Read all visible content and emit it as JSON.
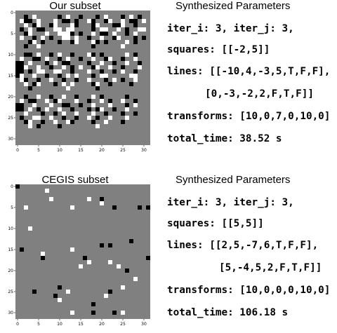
{
  "panels": [
    {
      "title": "Our subset",
      "image": {
        "rows": [
          "................................",
          "..k.w.....k.w..k...k.w...k.w.k..",
          ".wkk.w...w.kk.k..wk..kw..w.kk.w.",
          "..w.kw..kw...wk...kw...kkw..k...",
          ".k.w.kk..ww.ww....k.ww..w.k..ww.",
          "..kw...w..wwwk.k..w.kk.w..k.w...",
          ".w..k.w.k..ww.w..k..w..kw...k.k.",
          "...kw.k...k..kw...wk.k....w.k...",
          "..k..w............k......w......",
          "................................",
          "..kk.w..k.w..k...wk.k.....w.k...",
          ".w..kk.w..k.w..k..w..kw..k..w...",
          "kk.w...k.w.kk....k..w..k..w..k..",
          "kkw..w..k..w.k.w..kw..w..k...w..",
          "kk.k.ww..ww..k...w..k..k.w..k...",
          "kw..w..k..k.w.w...k.ww.....ww...",
          ".wk..k..w..k..k..w...k.w.k..w...",
          "..w.kw...k.w.w....kw..k....k....",
          "...k........w......k............",
          "................................",
          "..k..w..k..w..k...w.k.....k.....",
          ".w.kk..w.kw...w..k..w.k..w..k...",
          "kk..w...w..kk..k..w...w...k.w...",
          "kk.w.k.w..w..k...k.kw..k..w.....",
          "..w...k..k.w..w...w..k...k..k...",
          ".k..ww..w..k..k..w.k..w...w.....",
          "..kw..k..w..wk....k..w...k......",
          "...w.k....k........w............",
          "................................",
          "................................",
          "................................",
          "................................"
        ]
      },
      "xticks": [
        0,
        5,
        10,
        15,
        20,
        25,
        30
      ],
      "yticks": [
        0,
        5,
        10,
        15,
        20,
        25,
        30
      ],
      "heading": "Synthesized Parameters",
      "lines": [
        "iter_i: 3, iter_j: 3,",
        "squares: [[-2,5]]",
        "lines: [[-10,4,-3,5,T,F,F],",
        "[0,-3,-2,2,F,T,F]]",
        "transforms: [10,0,7,0,10,0]",
        "total_time: 38.52 s"
      ]
    },
    {
      "title": "CEGIS subset",
      "image": {
        "rows": [
          "k...............................",
          ".......w........................",
          "................................",
          "........w........w..k...........",
          "....................w...........",
          "..w..........w.........k.....k.k",
          "................................",
          "................................",
          "................................",
          "................................",
          "...w............................",
          "................................",
          "................................",
          "...........................k....",
          "....................k.k.........",
          ".k...........w..................",
          "......w.........................",
          "......k.........k..............k",
          ".................w....w.........",
          "...............w........w.......",
          "..........................k.....",
          "................................",
          "............................w...",
          "................................",
          "..........k..............w......",
          "....k.......w.........k.........",
          ".........k...........w..........",
          "..........w.....................",
          "..................k.............",
          "................................",
          ".............w....k....k.w......",
          "................................"
        ]
      },
      "xticks": [
        0,
        5,
        10,
        15,
        20,
        25,
        30
      ],
      "yticks": [
        0,
        5,
        10,
        15,
        20,
        25,
        30
      ],
      "heading": "Synthesized Parameters",
      "lines": [
        "iter_i: 3, iter_j: 3,",
        "squares: [[5,5]]",
        "lines: [[2,5,-7,6,T,F,F],",
        "[5,-4,5,2,F,T,F]]",
        "transforms: [10,0,0,0,10,0]",
        "total_time: 106.18 s"
      ]
    }
  ]
}
